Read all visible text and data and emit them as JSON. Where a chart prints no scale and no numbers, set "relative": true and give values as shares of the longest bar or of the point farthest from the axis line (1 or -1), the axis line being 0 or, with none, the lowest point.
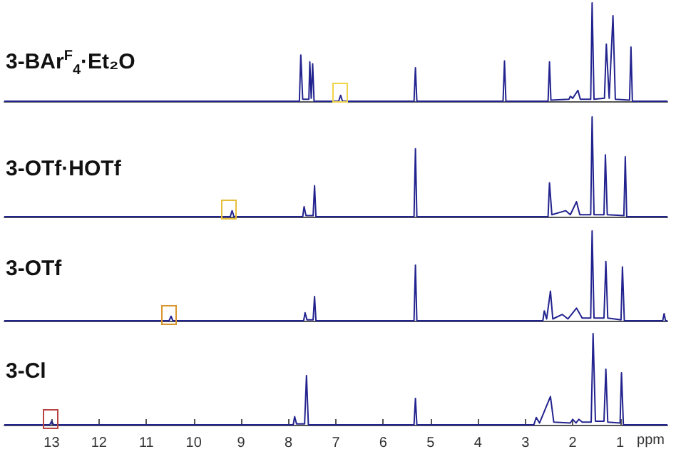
{
  "chart_data": [
    {
      "type": "line",
      "title": "3-BAr$^{F}$$_{4}$·Et₂O",
      "relative": true,
      "marker": "none",
      "color": "#23238f",
      "xlim": [
        14,
        0
      ],
      "tick_labels": false,
      "x": [
        14,
        7.77,
        7.74,
        7.7,
        7.57,
        7.55,
        7.52,
        7.49,
        7.46,
        6.94,
        6.9,
        6.86,
        5.35,
        5.32,
        5.29,
        3.47,
        3.44,
        3.41,
        2.52,
        2.49,
        2.46,
        2.08,
        2.05,
        2.0,
        1.89,
        1.84,
        1.62,
        1.59,
        1.55,
        1.33,
        1.29,
        1.23,
        1.15,
        1.1,
        0.8,
        0.77,
        0.74,
        0
      ],
      "values": [
        0,
        0,
        0.47,
        0.02,
        0.02,
        0.4,
        0.03,
        0.38,
        0,
        0,
        0.06,
        0,
        0,
        0.34,
        0,
        0,
        0.41,
        0,
        0,
        0.4,
        0.01,
        0.02,
        0.05,
        0.03,
        0.11,
        0.02,
        0.02,
        1,
        0.02,
        0.03,
        0.58,
        0.03,
        0.87,
        0.02,
        0.01,
        0.55,
        0,
        0
      ]
    },
    {
      "type": "line",
      "title": "3-OTf·HOTf",
      "relative": true,
      "marker": "none",
      "color": "#23238f",
      "xlim": [
        14,
        0
      ],
      "tick_labels": false,
      "x": [
        14,
        9.23,
        9.19,
        9.15,
        7.7,
        7.67,
        7.63,
        7.48,
        7.45,
        7.42,
        5.35,
        5.32,
        5.29,
        2.52,
        2.49,
        2.44,
        2.15,
        2.05,
        1.92,
        1.85,
        1.62,
        1.59,
        1.55,
        1.34,
        1.31,
        1.27,
        0.92,
        0.89,
        0.86,
        0
      ],
      "values": [
        0,
        0,
        0.06,
        0,
        0,
        0.1,
        0.01,
        0.01,
        0.31,
        0,
        0,
        0.68,
        0,
        0,
        0.34,
        0.02,
        0.06,
        0.02,
        0.15,
        0.02,
        0.02,
        1,
        0.02,
        0.02,
        0.62,
        0.02,
        0.01,
        0.6,
        0,
        0
      ]
    },
    {
      "type": "line",
      "title": "3-OTf",
      "relative": true,
      "marker": "none",
      "color": "#23238f",
      "xlim": [
        14,
        0
      ],
      "tick_labels": false,
      "x": [
        14,
        10.52,
        10.48,
        10.44,
        7.68,
        7.65,
        7.61,
        7.48,
        7.45,
        7.42,
        5.35,
        5.32,
        5.29,
        2.63,
        2.6,
        2.55,
        2.47,
        2.42,
        2.22,
        2.1,
        1.92,
        1.8,
        1.62,
        1.59,
        1.55,
        1.34,
        1.3,
        1.26,
        0.98,
        0.95,
        0.91,
        0.1,
        0.07,
        0.04,
        0
      ],
      "values": [
        0,
        0,
        0.05,
        0,
        0,
        0.09,
        0.01,
        0.01,
        0.27,
        0,
        0,
        0.62,
        0,
        0,
        0.11,
        0.02,
        0.33,
        0.02,
        0.07,
        0.02,
        0.14,
        0.03,
        0.03,
        1,
        0.03,
        0.03,
        0.66,
        0.03,
        0.01,
        0.6,
        0,
        0,
        0.08,
        0,
        0
      ]
    },
    {
      "type": "line",
      "title": "3-Cl",
      "relative": true,
      "marker": "none",
      "color": "#23238f",
      "xlim": [
        14,
        0
      ],
      "tick_labels": "x",
      "xlabel": "ppm",
      "xticks": [
        13,
        12,
        11,
        10,
        9,
        8,
        7,
        6,
        5,
        4,
        3,
        2,
        1
      ],
      "x": [
        14,
        13.04,
        13.0,
        12.96,
        7.9,
        7.87,
        7.83,
        7.66,
        7.62,
        7.58,
        5.35,
        5.32,
        5.29,
        2.82,
        2.77,
        2.7,
        2.47,
        2.4,
        2.05,
        2.0,
        1.93,
        1.87,
        1.8,
        1.61,
        1.57,
        1.52,
        1.34,
        1.3,
        1.26,
        1.0,
        0.97,
        0.93,
        0
      ],
      "values": [
        0,
        0,
        0.04,
        0,
        0,
        0.09,
        0.01,
        0.01,
        0.54,
        0,
        0,
        0.29,
        0,
        0,
        0.08,
        0.02,
        0.31,
        0.03,
        0.02,
        0.06,
        0.02,
        0.06,
        0.03,
        0.03,
        1,
        0.04,
        0.04,
        0.61,
        0.03,
        0.02,
        0.57,
        0,
        0
      ]
    }
  ]
}
